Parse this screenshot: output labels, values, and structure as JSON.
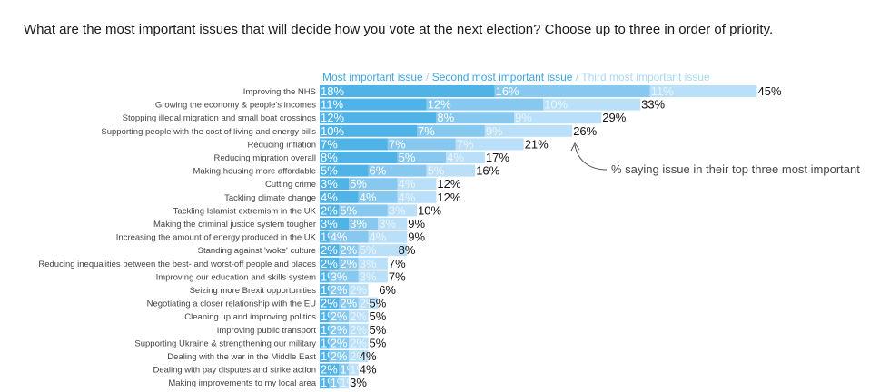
{
  "chart_data": {
    "type": "bar",
    "orientation": "horizontal",
    "stacked": true,
    "title": "What are the most important issues that will decide how you vote at the next election? Choose up to three in order of priority.",
    "legend": [
      "Most important issue",
      "Second most important issue",
      "Third most important issue"
    ],
    "legend_separator": " / ",
    "annotation": "% saying issue in their top three most important",
    "colors": {
      "first": "#4fb3e8",
      "second": "#86c8f0",
      "third": "#b9e0f8"
    },
    "categories": [
      "Improving the NHS",
      "Growing the economy & people's incomes",
      "Stopping illegal migration and small boat crossings",
      "Supporting people with the cost of living and energy bills",
      "Reducing inflation",
      "Reducing migration overall",
      "Making housing more affordable",
      "Cutting crime",
      "Tackling climate change",
      "Tackling Islamist extremism in the UK",
      "Making the criminal justice system tougher",
      "Increasing the amount of energy produced in the UK",
      "Standing against 'woke' culture",
      "Reducing inequalities between the best- and worst-off people and places",
      "Improving our education and skills system",
      "Seizing more Brexit opportunities",
      "Negotiating a closer relationship with the EU",
      "Cleaning up and improving politics",
      "Improving public transport",
      "Supporting Ukraine & strengthening our military",
      "Dealing with the war in the Middle East",
      "Dealing with pay disputes and strike action",
      "Making improvements to my local area"
    ],
    "series": [
      {
        "name": "Most important issue",
        "values": [
          18,
          11,
          12,
          10,
          7,
          8,
          5,
          3,
          4,
          2,
          3,
          1,
          2,
          2,
          1,
          1,
          2,
          1,
          1,
          1,
          1,
          2,
          1
        ]
      },
      {
        "name": "Second most important issue",
        "values": [
          16,
          12,
          8,
          7,
          7,
          5,
          6,
          5,
          4,
          5,
          3,
          4,
          2,
          2,
          3,
          2,
          2,
          2,
          2,
          2,
          2,
          1,
          1
        ]
      },
      {
        "name": "Third most important issue",
        "values": [
          11,
          10,
          9,
          9,
          7,
          4,
          5,
          4,
          4,
          3,
          3,
          4,
          5,
          3,
          3,
          2,
          2,
          2,
          2,
          2,
          2,
          1,
          1
        ]
      }
    ],
    "totals": [
      45,
      33,
      29,
      26,
      21,
      17,
      16,
      12,
      12,
      10,
      9,
      9,
      8,
      7,
      7,
      6,
      5,
      5,
      5,
      5,
      4,
      4,
      3
    ],
    "value_suffix": "%"
  }
}
